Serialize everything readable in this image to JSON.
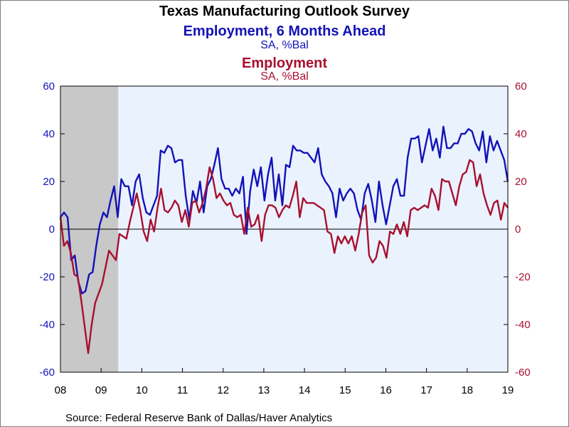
{
  "chart_data": {
    "type": "line",
    "title": "Texas Manufacturing Outlook Survey",
    "x_tick_labels": [
      "08",
      "09",
      "10",
      "11",
      "12",
      "13",
      "14",
      "15",
      "16",
      "17",
      "18",
      "19"
    ],
    "x_start": 2008.0,
    "x_end": 2019.0,
    "ylim": [
      -60,
      60
    ],
    "y_ticks": [
      60,
      40,
      20,
      0,
      -20,
      -40,
      -60
    ],
    "recession_band": {
      "start": 2008.0,
      "end": 2009.42
    },
    "source": "Source:  Federal Reserve Bank of Dallas/Haver Analytics",
    "colors": {
      "series1": "#1212B8",
      "series2": "#A8102E",
      "plot_bg": "#EAF2FE",
      "recession": "#C8C8C8",
      "left_axis": "#1212B8",
      "right_axis": "#A8102E"
    },
    "series": [
      {
        "name": "Employment, 6 Months Ahead",
        "unit": "SA, %Bal",
        "axis": "left",
        "values": [
          5,
          7,
          5,
          -13,
          -11,
          -22,
          -27,
          -26,
          -19,
          -18,
          -7,
          2,
          7,
          5,
          12,
          18,
          5,
          21,
          18,
          18,
          10,
          20,
          23,
          13,
          7,
          6,
          10,
          14,
          33,
          32,
          35,
          34,
          28,
          29,
          29,
          14,
          4,
          16,
          11,
          20,
          7,
          18,
          21,
          27,
          34,
          21,
          17,
          17,
          14,
          17,
          15,
          22,
          -2,
          16,
          25,
          18,
          26,
          12,
          23,
          30,
          12,
          23,
          10,
          27,
          26,
          35,
          33,
          33,
          32,
          32,
          30,
          28,
          34,
          23,
          20,
          18,
          15,
          5,
          17,
          12,
          15,
          17,
          15,
          8,
          4,
          15,
          19,
          12,
          3,
          20,
          10,
          2,
          10,
          18,
          21,
          14,
          14,
          30,
          38,
          38,
          39,
          28,
          35,
          42,
          33,
          38,
          30,
          43,
          34,
          34,
          36,
          36,
          40,
          40,
          42,
          41,
          36,
          33,
          41,
          28,
          39,
          33,
          37,
          33,
          29,
          20
        ]
      },
      {
        "name": "Employment",
        "unit": "SA, %Bal",
        "axis": "right",
        "values": [
          5,
          -7,
          -5,
          -10,
          -19,
          -20,
          -30,
          -41,
          -52,
          -40,
          -31,
          -27,
          -23,
          -16,
          -9,
          -11,
          -13,
          -2,
          -3,
          -4,
          3,
          9,
          15,
          8,
          -1,
          -5,
          4,
          -1,
          9,
          17,
          8,
          7,
          9,
          12,
          10,
          3,
          8,
          1,
          11,
          12,
          7,
          11,
          17,
          26,
          21,
          13,
          15,
          12,
          10,
          11,
          6,
          5,
          6,
          -2,
          9,
          1,
          2,
          6,
          -5,
          6,
          10,
          10,
          9,
          5,
          8,
          10,
          9,
          14,
          20,
          5,
          13,
          11,
          11,
          11,
          10,
          9,
          8,
          -1,
          -2,
          -10,
          -3,
          -6,
          -3,
          -6,
          -3,
          -9,
          -2,
          7,
          10,
          -11,
          -14,
          -12,
          -5,
          -7,
          -12,
          -1,
          -2,
          2,
          -2,
          3,
          -3,
          8,
          9,
          8,
          9,
          10,
          9,
          17,
          14,
          8,
          21,
          20,
          20,
          15,
          10,
          18,
          23,
          24,
          29,
          28,
          18,
          23,
          15,
          10,
          6,
          11,
          12,
          4,
          11,
          9
        ]
      }
    ]
  }
}
